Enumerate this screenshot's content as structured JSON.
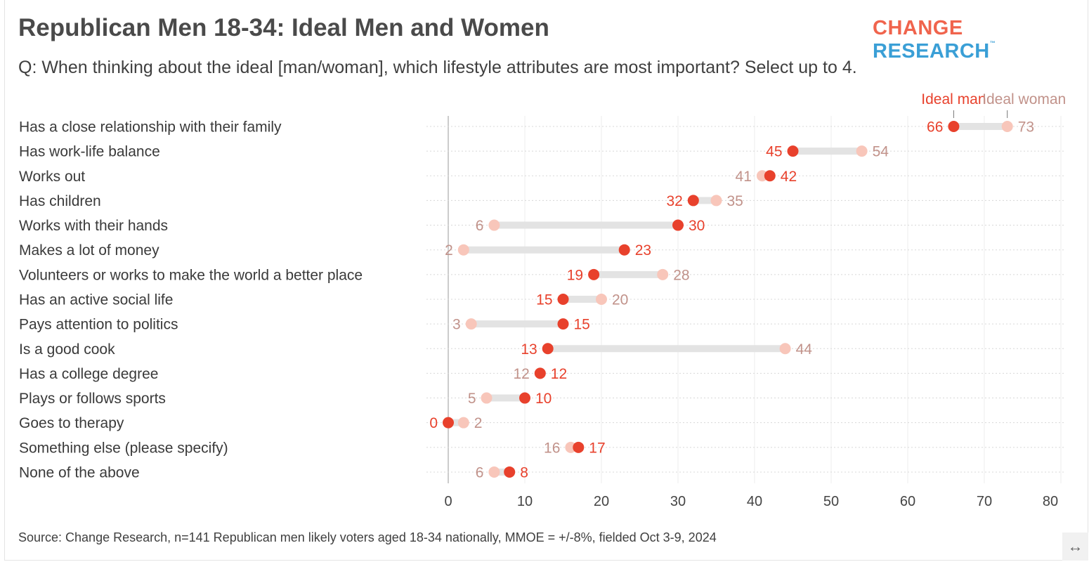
{
  "title": "Republican Men 18-34: Ideal Men and Women",
  "subtitle": "Q: When thinking about the ideal [man/woman], which lifestyle attributes are most important? Select up to 4.",
  "logo": {
    "part1": "CHANGE",
    "part2": "RESEARCH",
    "tm": "™"
  },
  "source": "Source: Change Research, n=141 Republican men likely voters aged 18-34 nationally, MMOE = +/-8%, fielded Oct 3-9, 2024",
  "expand_icon": "↔",
  "colors": {
    "man": "#e8412c",
    "woman_dot": "#f8c6ba",
    "woman_text": "#c1928a",
    "connector": "#e3e3e3"
  },
  "chart_data": {
    "type": "dumbbell",
    "title": "Republican Men 18-34: Ideal Men and Women",
    "xlim": [
      0,
      80
    ],
    "xticks": [
      0,
      10,
      20,
      30,
      40,
      50,
      60,
      70,
      80
    ],
    "grid": true,
    "legend": {
      "position": "top-right",
      "entries": [
        "Ideal man",
        "Ideal woman"
      ]
    },
    "categories": [
      "Has a close relationship with their family",
      "Has work-life balance",
      "Works out",
      "Has children",
      "Works with their hands",
      "Makes a lot of money",
      "Volunteers or works to make the world a better place",
      "Has an active social life",
      "Pays attention to politics",
      "Is a good cook",
      "Has a college degree",
      "Plays or follows sports",
      "Goes to therapy",
      "Something else (please specify)",
      "None of the above"
    ],
    "series": [
      {
        "name": "Ideal man",
        "values": [
          66,
          45,
          42,
          32,
          30,
          23,
          19,
          15,
          15,
          13,
          12,
          10,
          0,
          17,
          8
        ]
      },
      {
        "name": "Ideal woman",
        "values": [
          73,
          54,
          41,
          35,
          6,
          2,
          28,
          20,
          3,
          44,
          12,
          5,
          2,
          16,
          6
        ]
      }
    ]
  }
}
